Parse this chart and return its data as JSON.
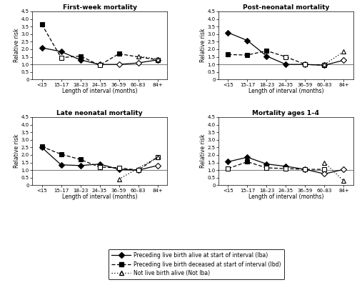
{
  "x_labels": [
    "<15",
    "15–17",
    "18–23",
    "24–35",
    "36–59",
    "60–83",
    "84+"
  ],
  "x_positions": [
    0,
    1,
    2,
    3,
    4,
    5,
    6
  ],
  "titles": [
    "First-week mortality",
    "Post-neonatal mortality",
    "Late neonatal mortality",
    "Mortality ages 1–4"
  ],
  "ylabel": "Relative risk",
  "xlabel": "Length of interval (months)",
  "ylim": [
    0,
    4.5
  ],
  "hline_y": 1.0,
  "panels": {
    "first_week": {
      "lba": [
        2.1,
        1.85,
        1.3,
        1.0,
        1.0,
        1.1,
        1.3
      ],
      "lba_solid": [
        true,
        true,
        true,
        true,
        false,
        false,
        false
      ],
      "lbd": [
        3.65,
        1.45,
        1.55,
        0.95,
        1.7,
        null,
        1.3
      ],
      "lbd_solid": [
        true,
        false,
        true,
        false,
        true,
        null,
        false
      ],
      "notlba": [
        null,
        null,
        null,
        null,
        null,
        1.55,
        1.35
      ],
      "notlba_solid": [
        null,
        null,
        null,
        null,
        null,
        false,
        false
      ]
    },
    "post_neonatal": {
      "lba": [
        3.1,
        2.58,
        1.55,
        1.0,
        1.0,
        0.95,
        1.28
      ],
      "lba_solid": [
        true,
        true,
        true,
        true,
        true,
        false,
        false
      ],
      "lbd": [
        1.65,
        1.62,
        1.9,
        1.5,
        1.0,
        0.95,
        null
      ],
      "lbd_solid": [
        true,
        true,
        true,
        false,
        false,
        false,
        null
      ],
      "notlba": [
        null,
        null,
        null,
        null,
        null,
        1.0,
        1.85
      ],
      "notlba_solid": [
        null,
        null,
        null,
        null,
        null,
        false,
        false
      ]
    },
    "late_neonatal": {
      "lba": [
        2.5,
        1.35,
        1.3,
        1.4,
        1.05,
        1.0,
        1.3
      ],
      "lba_solid": [
        true,
        true,
        true,
        true,
        true,
        false,
        false
      ],
      "lbd": [
        2.55,
        2.05,
        1.7,
        1.2,
        1.15,
        1.0,
        1.85
      ],
      "lbd_solid": [
        true,
        true,
        true,
        false,
        false,
        false,
        false
      ],
      "notlba": [
        null,
        null,
        null,
        null,
        0.4,
        null,
        1.85
      ],
      "notlba_solid": [
        null,
        null,
        null,
        null,
        false,
        null,
        false
      ]
    },
    "mortality_1_4": {
      "lba": [
        1.55,
        1.85,
        1.4,
        1.25,
        1.05,
        0.75,
        1.05
      ],
      "lba_solid": [
        true,
        true,
        true,
        true,
        false,
        false,
        false
      ],
      "lbd": [
        1.1,
        1.55,
        1.15,
        1.1,
        1.05,
        1.05,
        null
      ],
      "lbd_solid": [
        false,
        true,
        false,
        false,
        false,
        false,
        null
      ],
      "notlba": [
        null,
        null,
        null,
        null,
        null,
        1.5,
        0.28
      ],
      "notlba_solid": [
        null,
        null,
        null,
        null,
        null,
        false,
        false
      ]
    }
  },
  "legend": {
    "lba_label": "Preceding live birth alive at start of interval (lba)",
    "lbd_label": "Preceding live birth deceased at start of interval (lbd)",
    "notlba_label": "Not live birth alive (Not lba)"
  }
}
